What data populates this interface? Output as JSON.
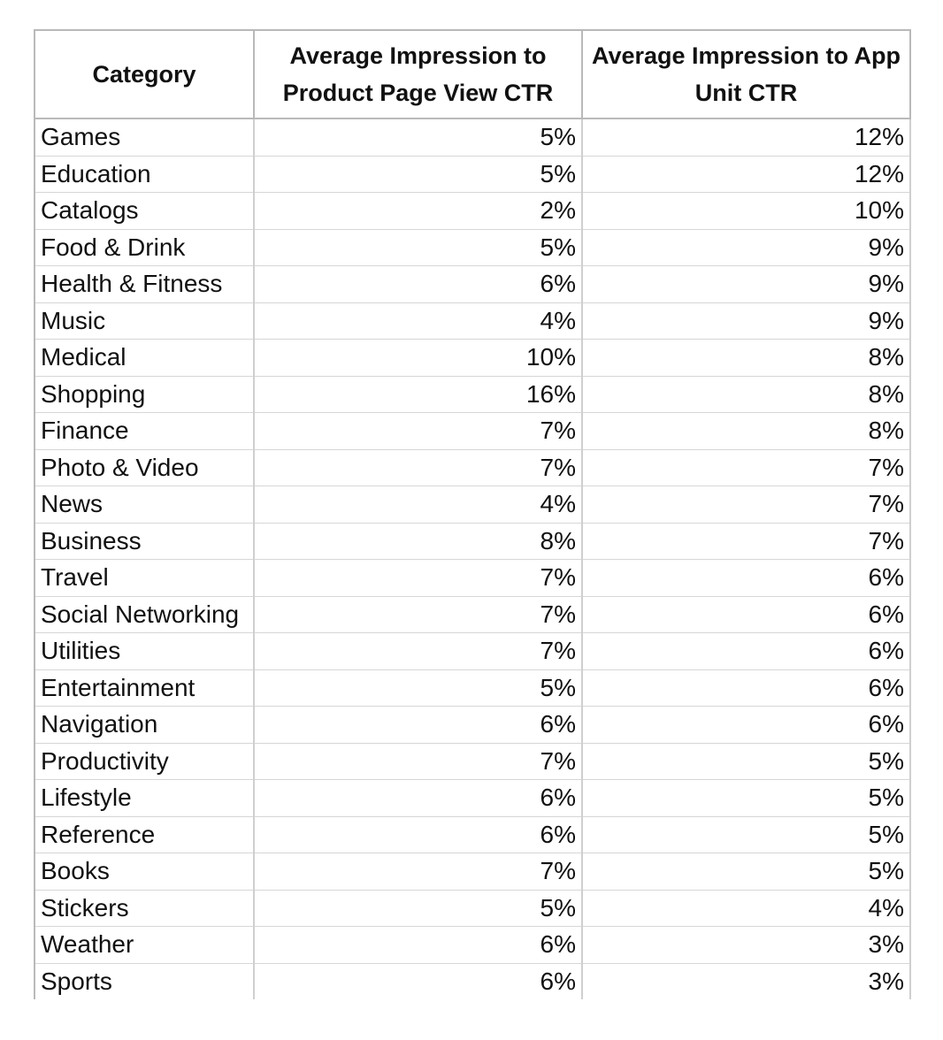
{
  "table": {
    "headers": {
      "category": "Category",
      "ppv_line1": "Average Impression to",
      "ppv_line2": "Product Page View CTR",
      "app_line1": "Average Impression to App",
      "app_line2": "Unit CTR"
    },
    "rows": [
      {
        "category": "Games",
        "ppv": "5%",
        "app": "12%"
      },
      {
        "category": "Education",
        "ppv": "5%",
        "app": "12%"
      },
      {
        "category": "Catalogs",
        "ppv": "2%",
        "app": "10%"
      },
      {
        "category": "Food & Drink",
        "ppv": "5%",
        "app": "9%"
      },
      {
        "category": "Health & Fitness",
        "ppv": "6%",
        "app": "9%"
      },
      {
        "category": "Music",
        "ppv": "4%",
        "app": "9%"
      },
      {
        "category": "Medical",
        "ppv": "10%",
        "app": "8%"
      },
      {
        "category": "Shopping",
        "ppv": "16%",
        "app": "8%"
      },
      {
        "category": "Finance",
        "ppv": "7%",
        "app": "8%"
      },
      {
        "category": "Photo & Video",
        "ppv": "7%",
        "app": "7%"
      },
      {
        "category": "News",
        "ppv": "4%",
        "app": "7%"
      },
      {
        "category": "Business",
        "ppv": "8%",
        "app": "7%"
      },
      {
        "category": "Travel",
        "ppv": "7%",
        "app": "6%"
      },
      {
        "category": "Social Networking",
        "ppv": "7%",
        "app": "6%"
      },
      {
        "category": "Utilities",
        "ppv": "7%",
        "app": "6%"
      },
      {
        "category": "Entertainment",
        "ppv": "5%",
        "app": "6%"
      },
      {
        "category": "Navigation",
        "ppv": "6%",
        "app": "6%"
      },
      {
        "category": "Productivity",
        "ppv": "7%",
        "app": "5%"
      },
      {
        "category": "Lifestyle",
        "ppv": "6%",
        "app": "5%"
      },
      {
        "category": "Reference",
        "ppv": "6%",
        "app": "5%"
      },
      {
        "category": "Books",
        "ppv": "7%",
        "app": "5%"
      },
      {
        "category": "Stickers",
        "ppv": "5%",
        "app": "4%"
      },
      {
        "category": "Weather",
        "ppv": "6%",
        "app": "3%"
      },
      {
        "category": "Sports",
        "ppv": "6%",
        "app": "3%"
      }
    ]
  }
}
